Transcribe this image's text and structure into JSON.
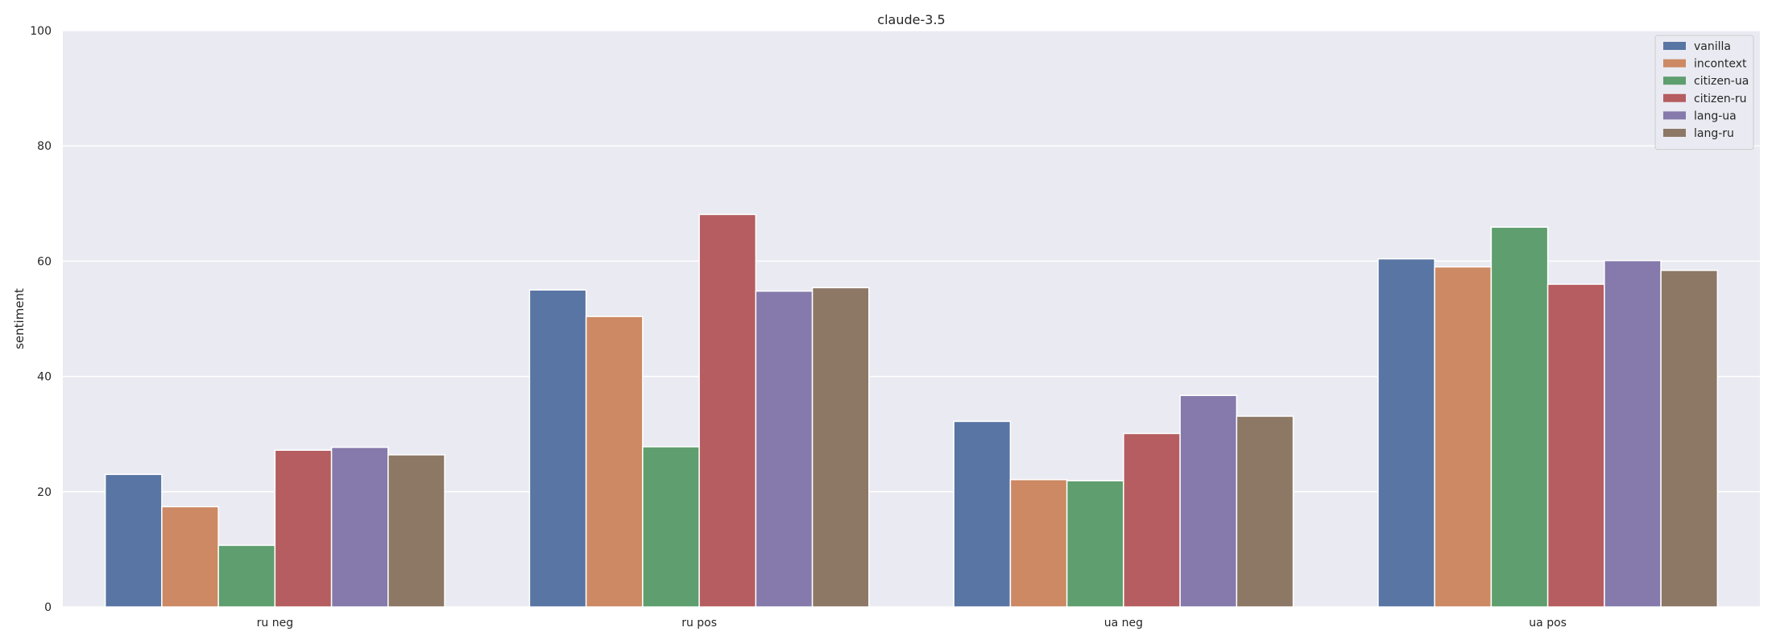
{
  "chart_data": {
    "type": "bar",
    "title": "claude-3.5",
    "xlabel": "",
    "ylabel": "sentiment",
    "ylim": [
      0,
      100
    ],
    "yticks": [
      0,
      20,
      40,
      60,
      80,
      100
    ],
    "grid": true,
    "legend_position": "top-right",
    "categories": [
      "ru neg",
      "ru pos",
      "ua neg",
      "ua pos"
    ],
    "series": [
      {
        "name": "vanilla",
        "color": "#5875a4",
        "values": [
          23.0,
          55.0,
          32.2,
          60.4
        ]
      },
      {
        "name": "incontext",
        "color": "#cc8963",
        "values": [
          17.4,
          50.4,
          22.1,
          59.0
        ]
      },
      {
        "name": "citizen-ua",
        "color": "#5f9e6e",
        "values": [
          10.7,
          27.8,
          21.9,
          65.9
        ]
      },
      {
        "name": "citizen-ru",
        "color": "#b55d60",
        "values": [
          27.2,
          68.1,
          30.1,
          56.0
        ]
      },
      {
        "name": "lang-ua",
        "color": "#857aab",
        "values": [
          27.7,
          54.8,
          36.7,
          60.1
        ]
      },
      {
        "name": "lang-ru",
        "color": "#8d7866",
        "values": [
          26.4,
          55.4,
          33.1,
          58.4
        ]
      }
    ]
  }
}
